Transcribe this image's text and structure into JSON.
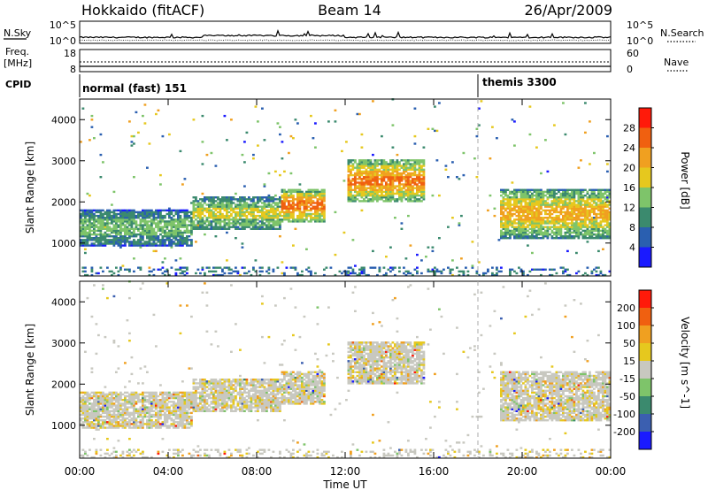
{
  "header": {
    "station": "Hokkaido (fitACF)",
    "beam": "Beam 14",
    "date": "26/Apr/2009"
  },
  "status_panel": {
    "nsky_label": "N.Sky",
    "nsky_ticks": [
      "10^5",
      "10^0"
    ],
    "nsearch_label": "N.Search",
    "nsearch_ticks": [
      "10^5",
      "10^0"
    ],
    "freq_label_line1": "Freq.",
    "freq_label_line2": "[MHz]",
    "freq_ticks": [
      "18",
      "8"
    ],
    "nave_label": "Nave",
    "nave_ticks": [
      "60",
      "0"
    ],
    "cpid_label": "CPID",
    "modes": [
      {
        "label": "normal (fast) 151",
        "start_hour": 0
      },
      {
        "label": "themis 3300",
        "start_hour": 18.0
      }
    ]
  },
  "chart_data": [
    {
      "type": "heatmap",
      "title": "",
      "quantity": "Power",
      "colorbar_label": "Power [dB]",
      "colorbar_ticks": [
        4,
        8,
        12,
        16,
        20,
        24,
        28
      ],
      "color_range": [
        0,
        32
      ],
      "colors": [
        "#1a1aff",
        "#2a5fb0",
        "#3b8a6e",
        "#7ec46a",
        "#e6c81e",
        "#f0a020",
        "#f06010",
        "#ff1a0a"
      ],
      "ylabel": "Slant Range [km]",
      "ylim": [
        200,
        4500
      ],
      "yticks": [
        1000,
        2000,
        3000,
        4000
      ],
      "xlim": [
        0,
        24
      ],
      "echo_bands": [
        {
          "t": [
            0,
            24
          ],
          "note": "ground scatter near 300 km"
        },
        {
          "t": [
            0,
            5
          ],
          "range": [
            900,
            1800
          ],
          "power_db": 16
        },
        {
          "t": [
            5,
            9
          ],
          "range": [
            1300,
            2100
          ],
          "power_db": 20
        },
        {
          "t": [
            9,
            11
          ],
          "range": [
            1500,
            2300
          ],
          "power_db": 28
        },
        {
          "t": [
            12,
            15.5
          ],
          "range": [
            2000,
            3000
          ],
          "power_db": 28
        },
        {
          "t": [
            19,
            24
          ],
          "range": [
            1100,
            2300
          ],
          "power_db": 24
        }
      ]
    },
    {
      "type": "heatmap",
      "title": "",
      "quantity": "Velocity",
      "colorbar_label": "Velocity [m s^-1]",
      "colorbar_ticks": [
        200,
        100,
        50,
        15,
        -15,
        -50,
        -100,
        -200
      ],
      "colors": [
        "#1a1aff",
        "#3b5fb0",
        "#3b8a6e",
        "#7ec46a",
        "#c8c8c0",
        "#e6c81e",
        "#f0a020",
        "#f06010",
        "#ff1a0a"
      ],
      "ylabel": "Slant Range [km]",
      "ylim": [
        200,
        4500
      ],
      "yticks": [
        1000,
        2000,
        3000,
        4000
      ],
      "xlim": [
        0,
        24
      ]
    }
  ],
  "x_axis": {
    "label": "Time UT",
    "ticks": [
      "00:00",
      "04:00",
      "08:00",
      "12:00",
      "16:00",
      "20:00",
      "00:00"
    ]
  }
}
